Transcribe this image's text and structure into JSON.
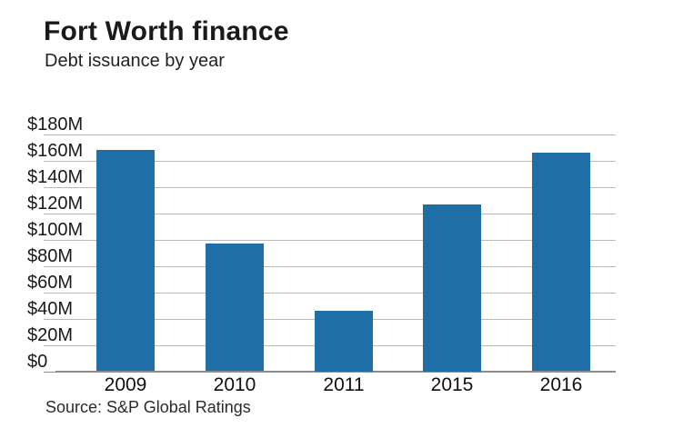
{
  "header": {
    "title": "Fort Worth finance",
    "subtitle": "Debt issuance by year"
  },
  "footer": {
    "source": "Source: S&P Global Ratings"
  },
  "colors": {
    "bar": "#1f6ea6",
    "gridline": "#b9b9b9",
    "baseline": "#8c8c8c",
    "text": "#1a1a1a"
  },
  "chart_data": {
    "type": "bar",
    "title": "Fort Worth finance",
    "subtitle": "Debt issuance by year",
    "categories": [
      "2009",
      "2010",
      "2011",
      "2015",
      "2016"
    ],
    "values": [
      168,
      97,
      46,
      127,
      166
    ],
    "unit": "millions USD",
    "xlabel": "",
    "ylabel": "",
    "ylim": [
      0,
      180
    ],
    "ytick_step": 20,
    "ytick_labels": [
      "$0",
      "$20M",
      "$40M",
      "$60M",
      "$80M",
      "$100M",
      "$120M",
      "$140M",
      "$160M",
      "$180M"
    ],
    "grid": true,
    "legend": false,
    "bar_color": "#1f6ea6",
    "source": "Source: S&P Global Ratings"
  }
}
